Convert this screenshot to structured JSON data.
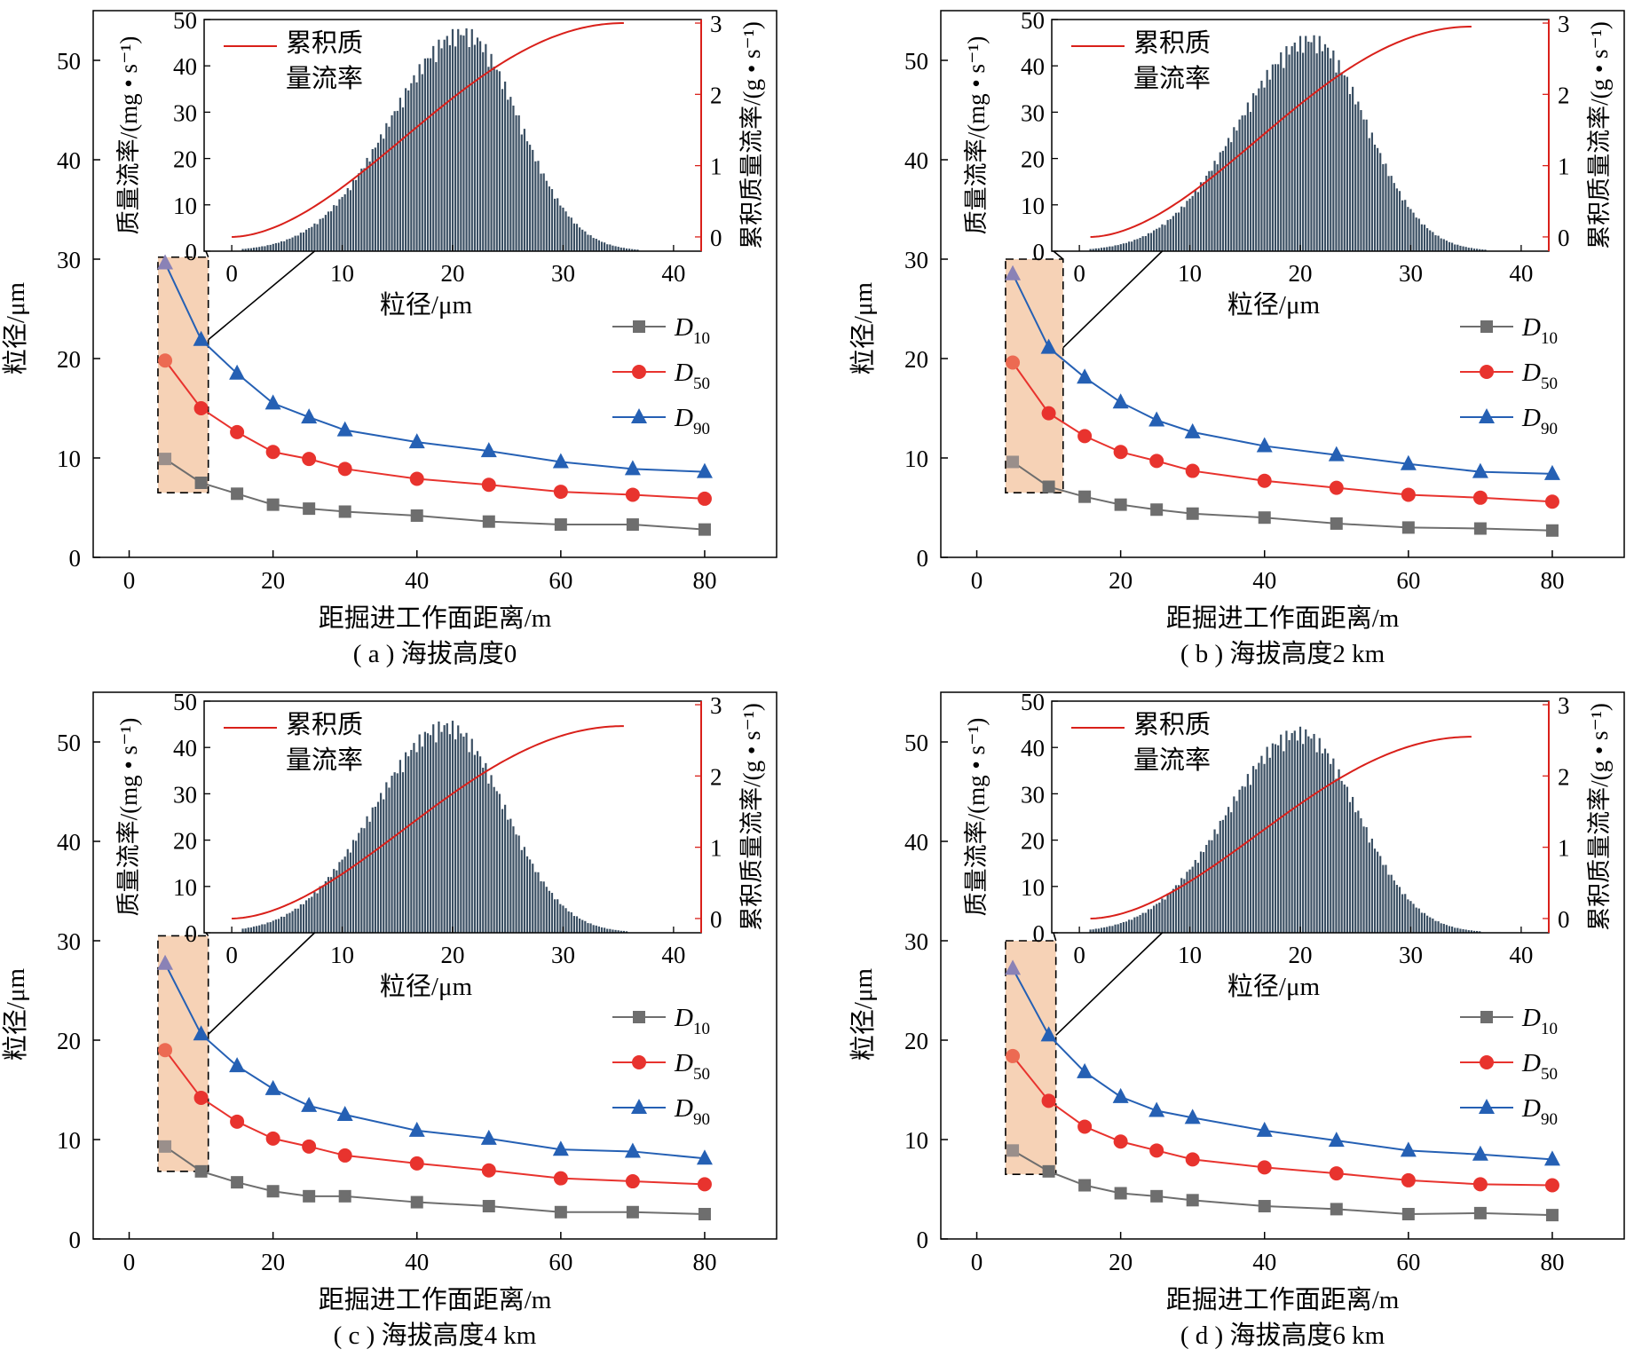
{
  "figure": {
    "main_xlabel": "距掘进工作面距离/m",
    "main_ylabel": "粒径/μm",
    "inset_xlabel": "粒径/μm",
    "inset_ylabel_left": "质量流率/(mg • s⁻¹)",
    "inset_ylabel_right": "累积质量流率/(g • s⁻¹)",
    "inset_legend": [
      "累积质",
      "量流率"
    ]
  },
  "colors": {
    "D10": "#6e6e6e",
    "D50": "#e8332e",
    "D90": "#2560b4",
    "highlight_fill": "#f6d2b6",
    "histogram": "#3a4f63",
    "cumulative": "#d9201a"
  },
  "chart_data": [
    {
      "type": "line",
      "caption": "( a ) 海拔高度0",
      "xlabel": "距掘进工作面距离/m",
      "ylabel": "粒径/μm",
      "xlim": [
        -5,
        90
      ],
      "ylim": [
        0,
        55
      ],
      "xticks": [
        0,
        20,
        40,
        60,
        80
      ],
      "yticks": [
        0,
        10,
        20,
        30,
        40,
        50
      ],
      "x": [
        5,
        10,
        15,
        20,
        25,
        30,
        40,
        50,
        60,
        70,
        80
      ],
      "series": [
        {
          "name": "D10",
          "sub": "10",
          "values": [
            9.9,
            7.5,
            6.4,
            5.3,
            4.9,
            4.6,
            4.2,
            3.6,
            3.3,
            3.3,
            2.8
          ]
        },
        {
          "name": "D50",
          "sub": "50",
          "values": [
            19.8,
            15.0,
            12.6,
            10.6,
            9.9,
            8.9,
            7.9,
            7.3,
            6.6,
            6.3,
            5.9
          ]
        },
        {
          "name": "D90",
          "sub": "90",
          "values": [
            29.6,
            21.9,
            18.5,
            15.5,
            14.1,
            12.8,
            11.6,
            10.7,
            9.6,
            8.9,
            8.6
          ]
        }
      ],
      "highlight": {
        "x": [
          4,
          11
        ],
        "y": [
          6.5,
          30.2
        ]
      },
      "inset": {
        "type": "bar",
        "xlabel": "粒径/μm",
        "ylabel_left": "质量流率/(mg • s⁻¹)",
        "ylabel_right": "累积质量流率/(g • s⁻¹)",
        "xlim": [
          -2.5,
          42.5
        ],
        "ylim_left": [
          0,
          50
        ],
        "ylim_right": [
          -0.2,
          3.05
        ],
        "xticks": [
          0,
          10,
          20,
          30,
          40
        ],
        "yticks_left": [
          0,
          10,
          20,
          30,
          40,
          50
        ],
        "yticks_right": [
          0,
          1,
          2,
          3
        ],
        "histogram": {
          "peak": 48.5,
          "peak_x": 21.0,
          "start_x": 1.0,
          "end_x": 37.5,
          "sigma_left": 6.6,
          "sigma_right": 5.0
        },
        "cumulative": {
          "start_x": 0.0,
          "end_x": 35.5,
          "total": 3.0
        },
        "legend": "累积质量流率"
      }
    },
    {
      "type": "line",
      "caption": "( b ) 海拔高度2 km",
      "xlabel": "距掘进工作面距离/m",
      "ylabel": "粒径/μm",
      "xlim": [
        -5,
        90
      ],
      "ylim": [
        0,
        55
      ],
      "xticks": [
        0,
        20,
        40,
        60,
        80
      ],
      "yticks": [
        0,
        10,
        20,
        30,
        40,
        50
      ],
      "x": [
        5,
        10,
        15,
        20,
        25,
        30,
        40,
        50,
        60,
        70,
        80
      ],
      "series": [
        {
          "name": "D10",
          "sub": "10",
          "values": [
            9.6,
            7.1,
            6.1,
            5.3,
            4.8,
            4.4,
            4.0,
            3.4,
            3.0,
            2.9,
            2.7
          ]
        },
        {
          "name": "D50",
          "sub": "50",
          "values": [
            19.6,
            14.5,
            12.2,
            10.6,
            9.7,
            8.7,
            7.7,
            7.0,
            6.3,
            6.0,
            5.6
          ]
        },
        {
          "name": "D90",
          "sub": "90",
          "values": [
            28.5,
            21.1,
            18.1,
            15.6,
            13.8,
            12.6,
            11.2,
            10.3,
            9.4,
            8.6,
            8.4
          ]
        }
      ],
      "highlight": {
        "x": [
          4,
          12
        ],
        "y": [
          6.5,
          30.0
        ]
      },
      "inset": {
        "type": "bar",
        "xlabel": "粒径/μm",
        "ylabel_left": "质量流率/(mg • s⁻¹)",
        "ylabel_right": "累积质量流率/(g • s⁻¹)",
        "xlim": [
          -2.5,
          42.5
        ],
        "ylim_left": [
          0,
          50
        ],
        "ylim_right": [
          -0.2,
          3.05
        ],
        "xticks": [
          0,
          10,
          20,
          30,
          40
        ],
        "yticks_left": [
          0,
          10,
          20,
          30,
          40,
          50
        ],
        "yticks_right": [
          0,
          1,
          2,
          3
        ],
        "histogram": {
          "peak": 47.0,
          "peak_x": 21.0,
          "start_x": 1.0,
          "end_x": 37.5,
          "sigma_left": 6.6,
          "sigma_right": 5.0
        },
        "cumulative": {
          "start_x": 1.0,
          "end_x": 35.5,
          "total": 2.95
        },
        "legend": "累积质量流率"
      }
    },
    {
      "type": "line",
      "caption": "( c ) 海拔高度4 km",
      "xlabel": "距掘进工作面距离/m",
      "ylabel": "粒径/μm",
      "xlim": [
        -5,
        90
      ],
      "ylim": [
        0,
        55
      ],
      "xticks": [
        0,
        20,
        40,
        60,
        80
      ],
      "yticks": [
        0,
        10,
        20,
        30,
        40,
        50
      ],
      "x": [
        5,
        10,
        15,
        20,
        25,
        30,
        40,
        50,
        60,
        70,
        80
      ],
      "series": [
        {
          "name": "D10",
          "sub": "10",
          "values": [
            9.3,
            6.8,
            5.7,
            4.8,
            4.3,
            4.3,
            3.7,
            3.3,
            2.7,
            2.7,
            2.5
          ]
        },
        {
          "name": "D50",
          "sub": "50",
          "values": [
            19.0,
            14.2,
            11.8,
            10.1,
            9.3,
            8.4,
            7.6,
            6.9,
            6.1,
            5.8,
            5.5
          ]
        },
        {
          "name": "D90",
          "sub": "90",
          "values": [
            27.7,
            20.6,
            17.4,
            15.1,
            13.4,
            12.5,
            10.9,
            10.1,
            9.0,
            8.8,
            8.1
          ]
        }
      ],
      "highlight": {
        "x": [
          4,
          11
        ],
        "y": [
          6.8,
          30.5
        ]
      },
      "inset": {
        "type": "bar",
        "xlabel": "粒径/μm",
        "ylabel_left": "质量流率/(mg • s⁻¹)",
        "ylabel_right": "累积质量流率/(g • s⁻¹)",
        "xlim": [
          -2.5,
          42.5
        ],
        "ylim_left": [
          0,
          50
        ],
        "ylim_right": [
          -0.2,
          3.05
        ],
        "xticks": [
          0,
          10,
          20,
          30,
          40
        ],
        "yticks_left": [
          0,
          10,
          20,
          30,
          40,
          50
        ],
        "yticks_right": [
          0,
          1,
          2,
          3
        ],
        "histogram": {
          "peak": 46.0,
          "peak_x": 19.5,
          "start_x": 1.0,
          "end_x": 36.5,
          "sigma_left": 6.6,
          "sigma_right": 5.2
        },
        "cumulative": {
          "start_x": 0.0,
          "end_x": 35.5,
          "total": 2.7
        },
        "legend": "累积质量流率"
      }
    },
    {
      "type": "line",
      "caption": "( d ) 海拔高度6 km",
      "xlabel": "距掘进工作面距离/m",
      "ylabel": "粒径/μm",
      "xlim": [
        -5,
        90
      ],
      "ylim": [
        0,
        55
      ],
      "xticks": [
        0,
        20,
        40,
        60,
        80
      ],
      "yticks": [
        0,
        10,
        20,
        30,
        40,
        50
      ],
      "x": [
        5,
        10,
        15,
        20,
        25,
        30,
        40,
        50,
        60,
        70,
        80
      ],
      "series": [
        {
          "name": "D10",
          "sub": "10",
          "values": [
            8.9,
            6.8,
            5.4,
            4.6,
            4.3,
            3.9,
            3.3,
            3.0,
            2.5,
            2.6,
            2.4
          ]
        },
        {
          "name": "D50",
          "sub": "50",
          "values": [
            18.4,
            13.9,
            11.3,
            9.8,
            8.9,
            8.0,
            7.2,
            6.6,
            5.9,
            5.5,
            5.4
          ]
        },
        {
          "name": "D90",
          "sub": "90",
          "values": [
            27.2,
            20.5,
            16.8,
            14.3,
            12.9,
            12.2,
            10.9,
            9.9,
            8.9,
            8.5,
            8.0
          ]
        }
      ],
      "highlight": {
        "x": [
          4,
          11
        ],
        "y": [
          6.5,
          30.0
        ]
      },
      "inset": {
        "type": "bar",
        "xlabel": "粒径/μm",
        "ylabel_left": "质量流率/(mg • s⁻¹)",
        "ylabel_right": "累积质量流率/(g • s⁻¹)",
        "xlim": [
          -2.5,
          42.5
        ],
        "ylim_left": [
          0,
          50
        ],
        "ylim_right": [
          -0.2,
          3.05
        ],
        "xticks": [
          0,
          10,
          20,
          30,
          40
        ],
        "yticks_left": [
          0,
          10,
          20,
          30,
          40,
          50
        ],
        "yticks_right": [
          0,
          1,
          2,
          3
        ],
        "histogram": {
          "peak": 44.5,
          "peak_x": 20.0,
          "start_x": 1.0,
          "end_x": 37.5,
          "sigma_left": 6.6,
          "sigma_right": 5.2
        },
        "cumulative": {
          "start_x": 1.0,
          "end_x": 35.5,
          "total": 2.55
        },
        "legend": "累积质量流率"
      }
    }
  ]
}
